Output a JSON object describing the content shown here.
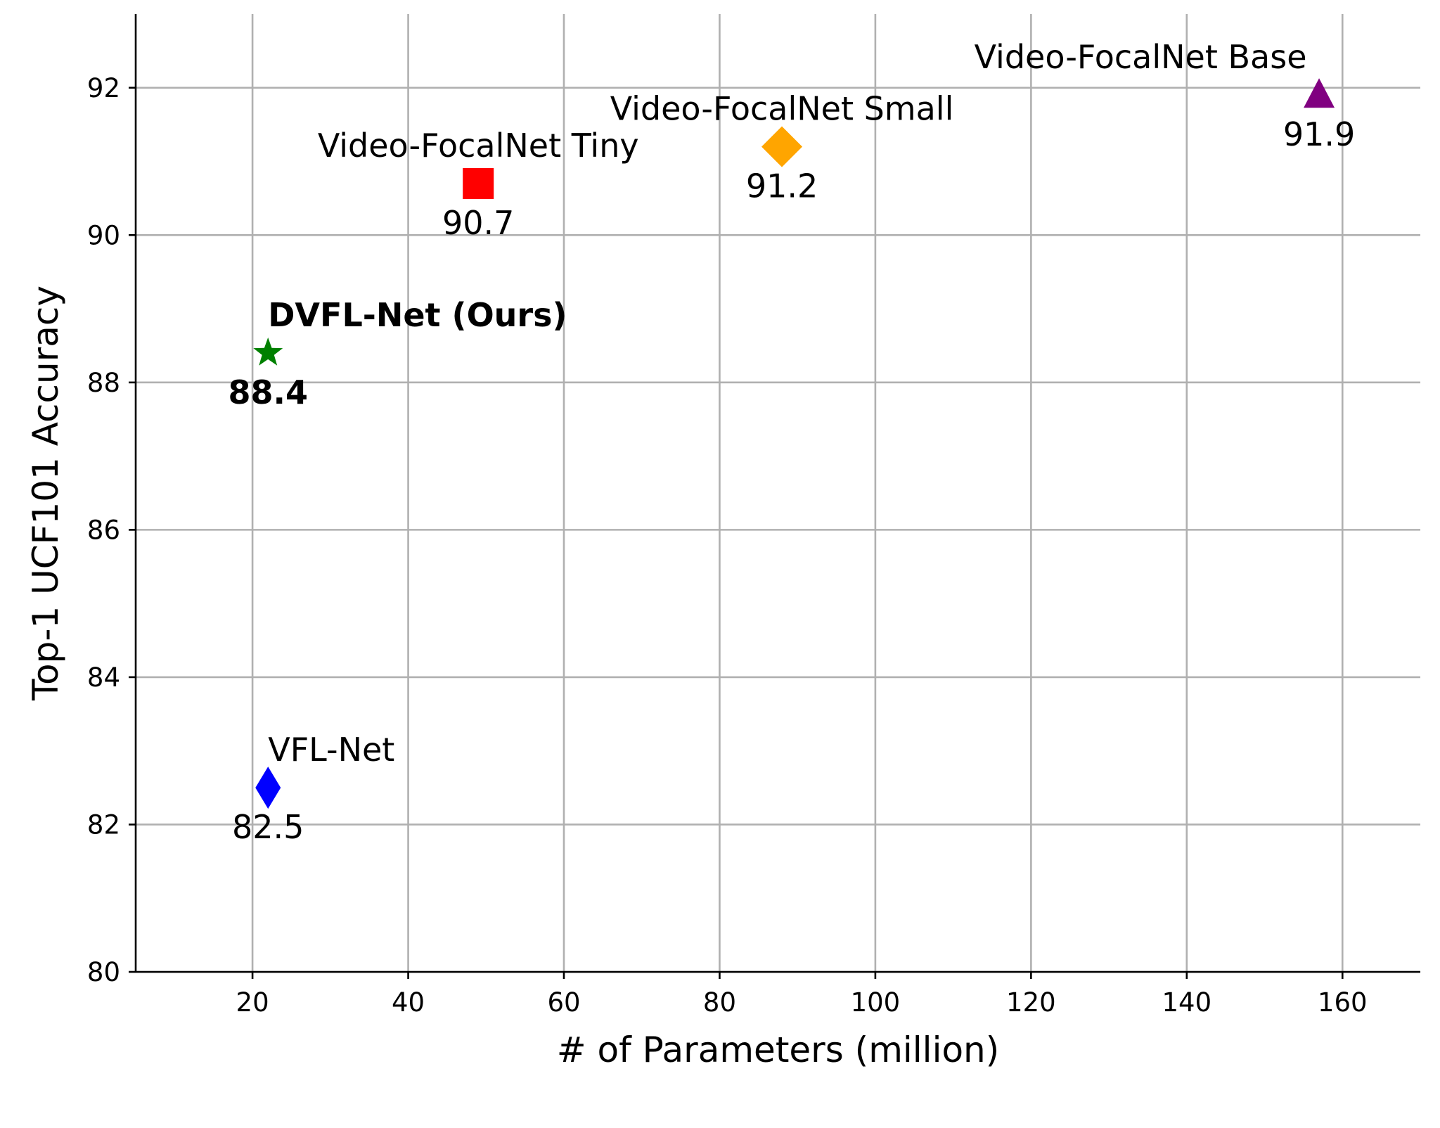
{
  "chart_data": {
    "type": "scatter",
    "title": "",
    "xlabel": "# of Parameters (million)",
    "ylabel": "Top-1 UCF101 Accuracy",
    "xlim": [
      5,
      170
    ],
    "ylim": [
      80,
      93
    ],
    "xticks": [
      20,
      40,
      60,
      80,
      100,
      120,
      140,
      160
    ],
    "yticks": [
      80,
      82,
      84,
      86,
      88,
      90,
      92
    ],
    "grid": true,
    "points": [
      {
        "name": "VFL-Net",
        "x": 22,
        "y": 82.5,
        "value_label": "82.5",
        "marker": "thin-diamond",
        "color": "#0000ff",
        "bold": false
      },
      {
        "name": "DVFL-Net (Ours)",
        "x": 22,
        "y": 88.4,
        "value_label": "88.4",
        "marker": "star",
        "color": "#008000",
        "bold": true
      },
      {
        "name": "Video-FocalNet Tiny",
        "x": 49,
        "y": 90.7,
        "value_label": "90.7",
        "marker": "square",
        "color": "#ff0000",
        "bold": false
      },
      {
        "name": "Video-FocalNet Small",
        "x": 88,
        "y": 91.2,
        "value_label": "91.2",
        "marker": "diamond",
        "color": "#ffa500",
        "bold": false
      },
      {
        "name": "Video-FocalNet Base",
        "x": 157,
        "y": 91.9,
        "value_label": "91.9",
        "marker": "triangle",
        "color": "#800080",
        "bold": false
      }
    ]
  }
}
